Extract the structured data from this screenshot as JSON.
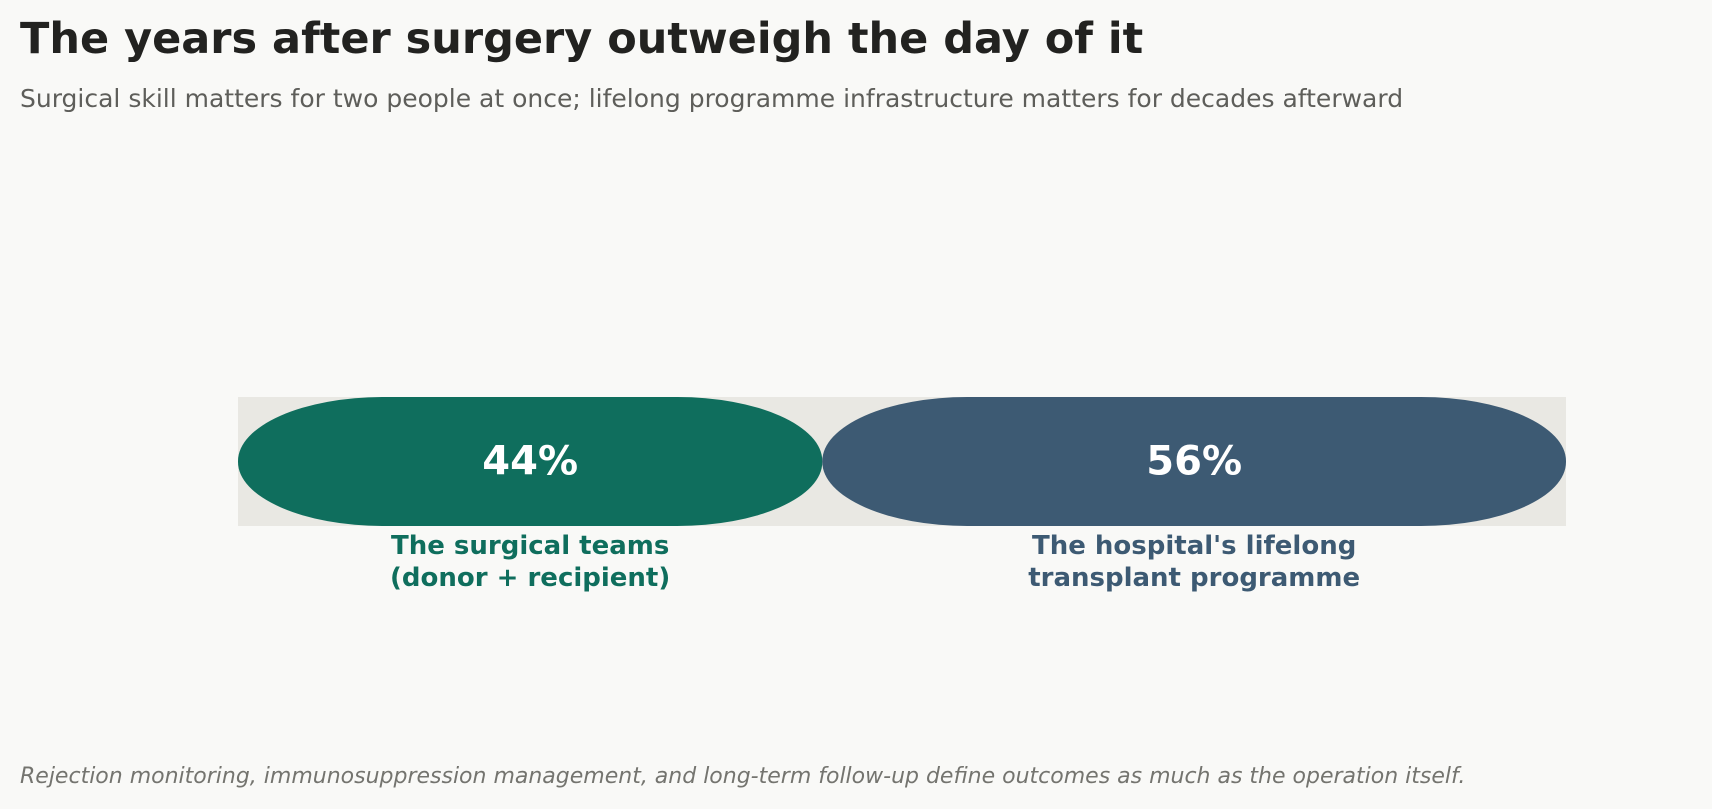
{
  "title": "The years after surgery outweigh the day of it",
  "subtitle": "Surgical skill matters for two people at once; lifelong programme infrastructure matters for decades afterward",
  "footnote": "Rejection monitoring, immunosuppression management, and long-term follow-up define outcomes as much as the operation itself.",
  "colors": {
    "background": "#f9f9f7",
    "track": "#e9e8e3",
    "value_text": "#ffffff"
  },
  "chart_data": {
    "type": "bar",
    "orientation": "horizontal-stacked",
    "total": 100,
    "unit": "%",
    "segments": [
      {
        "value": 44,
        "value_label": "44%",
        "label_lines": [
          "The surgical teams",
          "(donor + recipient)"
        ],
        "color": "#0f6e5d"
      },
      {
        "value": 56,
        "value_label": "56%",
        "label_lines": [
          "The hospital's lifelong",
          "transplant programme"
        ],
        "color": "#3d5a73"
      }
    ]
  }
}
